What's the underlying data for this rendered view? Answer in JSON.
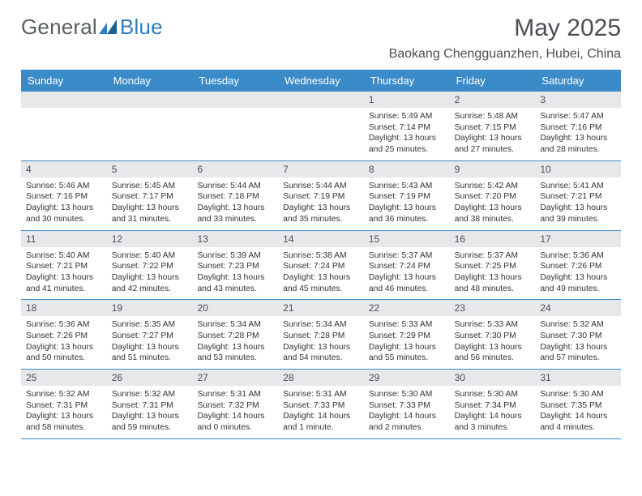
{
  "logo": {
    "part1": "General",
    "part2": "Blue"
  },
  "title": "May 2025",
  "subtitle": "Baokang Chengguanzhen, Hubei, China",
  "colors": {
    "header_bg": "#3b8bc9",
    "header_text": "#ffffff",
    "date_strip_bg": "#e7e8ea",
    "border": "#3b8bc9",
    "body_text": "#333333",
    "page_bg": "#ffffff",
    "logo_gray": "#5a5f63",
    "logo_blue": "#2f7ebf",
    "title_color": "#4a4f55"
  },
  "dow": [
    "Sunday",
    "Monday",
    "Tuesday",
    "Wednesday",
    "Thursday",
    "Friday",
    "Saturday"
  ],
  "weeks": [
    [
      null,
      null,
      null,
      null,
      {
        "d": "1",
        "sr": "Sunrise: 5:49 AM",
        "ss": "Sunset: 7:14 PM",
        "dl1": "Daylight: 13 hours",
        "dl2": "and 25 minutes."
      },
      {
        "d": "2",
        "sr": "Sunrise: 5:48 AM",
        "ss": "Sunset: 7:15 PM",
        "dl1": "Daylight: 13 hours",
        "dl2": "and 27 minutes."
      },
      {
        "d": "3",
        "sr": "Sunrise: 5:47 AM",
        "ss": "Sunset: 7:16 PM",
        "dl1": "Daylight: 13 hours",
        "dl2": "and 28 minutes."
      }
    ],
    [
      {
        "d": "4",
        "sr": "Sunrise: 5:46 AM",
        "ss": "Sunset: 7:16 PM",
        "dl1": "Daylight: 13 hours",
        "dl2": "and 30 minutes."
      },
      {
        "d": "5",
        "sr": "Sunrise: 5:45 AM",
        "ss": "Sunset: 7:17 PM",
        "dl1": "Daylight: 13 hours",
        "dl2": "and 31 minutes."
      },
      {
        "d": "6",
        "sr": "Sunrise: 5:44 AM",
        "ss": "Sunset: 7:18 PM",
        "dl1": "Daylight: 13 hours",
        "dl2": "and 33 minutes."
      },
      {
        "d": "7",
        "sr": "Sunrise: 5:44 AM",
        "ss": "Sunset: 7:19 PM",
        "dl1": "Daylight: 13 hours",
        "dl2": "and 35 minutes."
      },
      {
        "d": "8",
        "sr": "Sunrise: 5:43 AM",
        "ss": "Sunset: 7:19 PM",
        "dl1": "Daylight: 13 hours",
        "dl2": "and 36 minutes."
      },
      {
        "d": "9",
        "sr": "Sunrise: 5:42 AM",
        "ss": "Sunset: 7:20 PM",
        "dl1": "Daylight: 13 hours",
        "dl2": "and 38 minutes."
      },
      {
        "d": "10",
        "sr": "Sunrise: 5:41 AM",
        "ss": "Sunset: 7:21 PM",
        "dl1": "Daylight: 13 hours",
        "dl2": "and 39 minutes."
      }
    ],
    [
      {
        "d": "11",
        "sr": "Sunrise: 5:40 AM",
        "ss": "Sunset: 7:21 PM",
        "dl1": "Daylight: 13 hours",
        "dl2": "and 41 minutes."
      },
      {
        "d": "12",
        "sr": "Sunrise: 5:40 AM",
        "ss": "Sunset: 7:22 PM",
        "dl1": "Daylight: 13 hours",
        "dl2": "and 42 minutes."
      },
      {
        "d": "13",
        "sr": "Sunrise: 5:39 AM",
        "ss": "Sunset: 7:23 PM",
        "dl1": "Daylight: 13 hours",
        "dl2": "and 43 minutes."
      },
      {
        "d": "14",
        "sr": "Sunrise: 5:38 AM",
        "ss": "Sunset: 7:24 PM",
        "dl1": "Daylight: 13 hours",
        "dl2": "and 45 minutes."
      },
      {
        "d": "15",
        "sr": "Sunrise: 5:37 AM",
        "ss": "Sunset: 7:24 PM",
        "dl1": "Daylight: 13 hours",
        "dl2": "and 46 minutes."
      },
      {
        "d": "16",
        "sr": "Sunrise: 5:37 AM",
        "ss": "Sunset: 7:25 PM",
        "dl1": "Daylight: 13 hours",
        "dl2": "and 48 minutes."
      },
      {
        "d": "17",
        "sr": "Sunrise: 5:36 AM",
        "ss": "Sunset: 7:26 PM",
        "dl1": "Daylight: 13 hours",
        "dl2": "and 49 minutes."
      }
    ],
    [
      {
        "d": "18",
        "sr": "Sunrise: 5:36 AM",
        "ss": "Sunset: 7:26 PM",
        "dl1": "Daylight: 13 hours",
        "dl2": "and 50 minutes."
      },
      {
        "d": "19",
        "sr": "Sunrise: 5:35 AM",
        "ss": "Sunset: 7:27 PM",
        "dl1": "Daylight: 13 hours",
        "dl2": "and 51 minutes."
      },
      {
        "d": "20",
        "sr": "Sunrise: 5:34 AM",
        "ss": "Sunset: 7:28 PM",
        "dl1": "Daylight: 13 hours",
        "dl2": "and 53 minutes."
      },
      {
        "d": "21",
        "sr": "Sunrise: 5:34 AM",
        "ss": "Sunset: 7:28 PM",
        "dl1": "Daylight: 13 hours",
        "dl2": "and 54 minutes."
      },
      {
        "d": "22",
        "sr": "Sunrise: 5:33 AM",
        "ss": "Sunset: 7:29 PM",
        "dl1": "Daylight: 13 hours",
        "dl2": "and 55 minutes."
      },
      {
        "d": "23",
        "sr": "Sunrise: 5:33 AM",
        "ss": "Sunset: 7:30 PM",
        "dl1": "Daylight: 13 hours",
        "dl2": "and 56 minutes."
      },
      {
        "d": "24",
        "sr": "Sunrise: 5:32 AM",
        "ss": "Sunset: 7:30 PM",
        "dl1": "Daylight: 13 hours",
        "dl2": "and 57 minutes."
      }
    ],
    [
      {
        "d": "25",
        "sr": "Sunrise: 5:32 AM",
        "ss": "Sunset: 7:31 PM",
        "dl1": "Daylight: 13 hours",
        "dl2": "and 58 minutes."
      },
      {
        "d": "26",
        "sr": "Sunrise: 5:32 AM",
        "ss": "Sunset: 7:31 PM",
        "dl1": "Daylight: 13 hours",
        "dl2": "and 59 minutes."
      },
      {
        "d": "27",
        "sr": "Sunrise: 5:31 AM",
        "ss": "Sunset: 7:32 PM",
        "dl1": "Daylight: 14 hours",
        "dl2": "and 0 minutes."
      },
      {
        "d": "28",
        "sr": "Sunrise: 5:31 AM",
        "ss": "Sunset: 7:33 PM",
        "dl1": "Daylight: 14 hours",
        "dl2": "and 1 minute."
      },
      {
        "d": "29",
        "sr": "Sunrise: 5:30 AM",
        "ss": "Sunset: 7:33 PM",
        "dl1": "Daylight: 14 hours",
        "dl2": "and 2 minutes."
      },
      {
        "d": "30",
        "sr": "Sunrise: 5:30 AM",
        "ss": "Sunset: 7:34 PM",
        "dl1": "Daylight: 14 hours",
        "dl2": "and 3 minutes."
      },
      {
        "d": "31",
        "sr": "Sunrise: 5:30 AM",
        "ss": "Sunset: 7:35 PM",
        "dl1": "Daylight: 14 hours",
        "dl2": "and 4 minutes."
      }
    ]
  ]
}
